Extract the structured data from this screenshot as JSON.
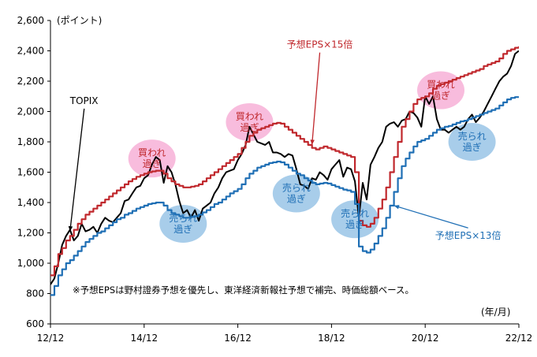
{
  "chart_data": {
    "type": "line",
    "unit_label": "(ポイント)",
    "x_unit_label": "(年/月)",
    "x_ticks": [
      "12/12",
      "14/12",
      "16/12",
      "18/12",
      "20/12",
      "22/12"
    ],
    "y_ticks": [
      600,
      800,
      1000,
      1200,
      1400,
      1600,
      1800,
      2000,
      2200,
      2400,
      2600
    ],
    "ylim": [
      600,
      2600
    ],
    "xlim": [
      0,
      120
    ],
    "note": "※予想EPSは野村證券予想を優先し、東洋経済新報社予想で補完、時価総額ベース。",
    "colors": {
      "topix": "#000000",
      "eps15": "#c0282d",
      "eps13": "#1f6fb5",
      "overbought": "#f7b5d9",
      "oversold": "#9fc8e8"
    },
    "series": [
      {
        "name": "TOPIX",
        "x": [
          0,
          1,
          2,
          3,
          4,
          5,
          6,
          7,
          8,
          9,
          10,
          11,
          12,
          13,
          14,
          15,
          16,
          17,
          18,
          19,
          20,
          21,
          22,
          23,
          24,
          25,
          26,
          27,
          28,
          29,
          30,
          31,
          32,
          33,
          34,
          35,
          36,
          37,
          38,
          39,
          40,
          41,
          42,
          43,
          44,
          45,
          46,
          47,
          48,
          49,
          50,
          51,
          52,
          53,
          54,
          55,
          56,
          57,
          58,
          59,
          60,
          61,
          62,
          63,
          64,
          65,
          66,
          67,
          68,
          69,
          70,
          71,
          72,
          73,
          74,
          75,
          76,
          77,
          78,
          79,
          80,
          81,
          82,
          83,
          84,
          85,
          86,
          87,
          88,
          89,
          90,
          91,
          92,
          93,
          94,
          95,
          96,
          97,
          98,
          99,
          100,
          101,
          102,
          103,
          104,
          105,
          106,
          107,
          108,
          109,
          110,
          111,
          112,
          113,
          114,
          115,
          116,
          117,
          118,
          119,
          120
        ],
        "y": [
          860,
          900,
          1000,
          1120,
          1180,
          1220,
          1150,
          1180,
          1260,
          1210,
          1220,
          1240,
          1200,
          1260,
          1300,
          1280,
          1270,
          1300,
          1330,
          1410,
          1420,
          1460,
          1500,
          1510,
          1560,
          1580,
          1650,
          1700,
          1680,
          1530,
          1640,
          1600,
          1520,
          1410,
          1330,
          1350,
          1300,
          1350,
          1280,
          1360,
          1380,
          1400,
          1460,
          1500,
          1560,
          1600,
          1610,
          1620,
          1680,
          1720,
          1780,
          1900,
          1850,
          1800,
          1790,
          1780,
          1800,
          1730,
          1730,
          1720,
          1700,
          1720,
          1710,
          1620,
          1520,
          1510,
          1490,
          1560,
          1550,
          1600,
          1580,
          1550,
          1620,
          1650,
          1680,
          1570,
          1630,
          1620,
          1540,
          1300,
          1530,
          1420,
          1650,
          1700,
          1760,
          1800,
          1900,
          1920,
          1930,
          1900,
          1940,
          1950,
          2000,
          1990,
          1960,
          1900,
          2100,
          2050,
          2100,
          1950,
          1880,
          1880,
          1860,
          1880,
          1900,
          1880,
          1900,
          1950,
          1980,
          1930,
          1960,
          2000,
          2050,
          2100,
          2150,
          2200,
          2230,
          2250,
          2300,
          2380,
          2400
        ]
      },
      {
        "name": "予想EPS×15倍",
        "x": [
          0,
          1,
          2,
          3,
          4,
          5,
          6,
          7,
          8,
          9,
          10,
          11,
          12,
          13,
          14,
          15,
          16,
          17,
          18,
          19,
          20,
          21,
          22,
          23,
          24,
          25,
          26,
          27,
          28,
          29,
          30,
          31,
          32,
          33,
          34,
          35,
          36,
          37,
          38,
          39,
          40,
          41,
          42,
          43,
          44,
          45,
          46,
          47,
          48,
          49,
          50,
          51,
          52,
          53,
          54,
          55,
          56,
          57,
          58,
          59,
          60,
          61,
          62,
          63,
          64,
          65,
          66,
          67,
          68,
          69,
          70,
          71,
          72,
          73,
          74,
          75,
          76,
          77,
          78,
          79,
          80,
          81,
          82,
          83,
          84,
          85,
          86,
          87,
          88,
          89,
          90,
          91,
          92,
          93,
          94,
          95,
          96,
          97,
          98,
          99,
          100,
          101,
          102,
          103,
          104,
          105,
          106,
          107,
          108,
          109,
          110,
          111,
          112,
          113,
          114,
          115,
          116,
          117,
          118,
          119,
          120
        ],
        "y": [
          920,
          980,
          1060,
          1100,
          1150,
          1180,
          1220,
          1260,
          1290,
          1320,
          1340,
          1360,
          1380,
          1400,
          1420,
          1440,
          1460,
          1480,
          1500,
          1520,
          1540,
          1555,
          1570,
          1580,
          1590,
          1600,
          1605,
          1610,
          1610,
          1590,
          1560,
          1540,
          1520,
          1510,
          1500,
          1500,
          1505,
          1510,
          1520,
          1540,
          1560,
          1580,
          1600,
          1620,
          1640,
          1660,
          1680,
          1700,
          1720,
          1760,
          1800,
          1840,
          1860,
          1880,
          1890,
          1900,
          1910,
          1920,
          1925,
          1920,
          1900,
          1880,
          1860,
          1840,
          1820,
          1800,
          1780,
          1760,
          1750,
          1760,
          1770,
          1760,
          1750,
          1740,
          1730,
          1720,
          1710,
          1700,
          1600,
          1280,
          1250,
          1240,
          1260,
          1300,
          1360,
          1420,
          1500,
          1600,
          1700,
          1800,
          1900,
          1950,
          2000,
          2050,
          2080,
          2090,
          2100,
          2120,
          2150,
          2170,
          2180,
          2190,
          2200,
          2210,
          2220,
          2230,
          2240,
          2250,
          2260,
          2270,
          2280,
          2300,
          2310,
          2320,
          2330,
          2350,
          2380,
          2400,
          2410,
          2420,
          2430
        ]
      },
      {
        "name": "予想EPS×13倍",
        "x": [
          0,
          1,
          2,
          3,
          4,
          5,
          6,
          7,
          8,
          9,
          10,
          11,
          12,
          13,
          14,
          15,
          16,
          17,
          18,
          19,
          20,
          21,
          22,
          23,
          24,
          25,
          26,
          27,
          28,
          29,
          30,
          31,
          32,
          33,
          34,
          35,
          36,
          37,
          38,
          39,
          40,
          41,
          42,
          43,
          44,
          45,
          46,
          47,
          48,
          49,
          50,
          51,
          52,
          53,
          54,
          55,
          56,
          57,
          58,
          59,
          60,
          61,
          62,
          63,
          64,
          65,
          66,
          67,
          68,
          69,
          70,
          71,
          72,
          73,
          74,
          75,
          76,
          77,
          78,
          79,
          80,
          81,
          82,
          83,
          84,
          85,
          86,
          87,
          88,
          89,
          90,
          91,
          92,
          93,
          94,
          95,
          96,
          97,
          98,
          99,
          100,
          101,
          102,
          103,
          104,
          105,
          106,
          107,
          108,
          109,
          110,
          111,
          112,
          113,
          114,
          115,
          116,
          117,
          118,
          119,
          120
        ],
        "y": [
          790,
          850,
          920,
          960,
          1000,
          1020,
          1050,
          1080,
          1110,
          1140,
          1160,
          1180,
          1200,
          1210,
          1230,
          1250,
          1270,
          1290,
          1300,
          1320,
          1330,
          1345,
          1360,
          1370,
          1380,
          1390,
          1395,
          1400,
          1400,
          1380,
          1350,
          1330,
          1320,
          1310,
          1300,
          1300,
          1305,
          1310,
          1320,
          1335,
          1350,
          1370,
          1390,
          1400,
          1420,
          1440,
          1460,
          1475,
          1490,
          1520,
          1560,
          1590,
          1610,
          1630,
          1640,
          1650,
          1660,
          1665,
          1670,
          1665,
          1650,
          1630,
          1610,
          1590,
          1580,
          1560,
          1545,
          1530,
          1520,
          1525,
          1530,
          1525,
          1515,
          1505,
          1495,
          1485,
          1480,
          1470,
          1390,
          1110,
          1080,
          1070,
          1090,
          1130,
          1180,
          1230,
          1300,
          1380,
          1470,
          1560,
          1640,
          1690,
          1730,
          1770,
          1800,
          1810,
          1820,
          1840,
          1860,
          1880,
          1890,
          1900,
          1905,
          1915,
          1925,
          1935,
          1940,
          1950,
          1960,
          1970,
          1980,
          1990,
          2000,
          2010,
          2020,
          2040,
          2060,
          2080,
          2090,
          2095,
          2100
        ]
      }
    ],
    "annotations": [
      {
        "kind": "overbought",
        "label_line1": "買われ",
        "label_line2": "過ぎ",
        "x": 26,
        "y": 1690
      },
      {
        "kind": "overbought",
        "label_line1": "買われ",
        "label_line2": "過ぎ",
        "x": 51,
        "y": 1930
      },
      {
        "kind": "overbought",
        "label_line1": "買われ",
        "label_line2": "過ぎ",
        "x": 100,
        "y": 2140
      },
      {
        "kind": "oversold",
        "label_line1": "売られ",
        "label_line2": "過ぎ",
        "x": 34,
        "y": 1260
      },
      {
        "kind": "oversold",
        "label_line1": "売られ",
        "label_line2": "過ぎ",
        "x": 63,
        "y": 1460
      },
      {
        "kind": "oversold",
        "label_line1": "売られ",
        "label_line2": "過ぎ",
        "x": 78,
        "y": 1290
      },
      {
        "kind": "oversold",
        "label_line1": "売られ",
        "label_line2": "過ぎ",
        "x": 108,
        "y": 1800
      }
    ],
    "series_labels": [
      {
        "series": 0,
        "text": "TOPIX",
        "tx": 5,
        "ty": 2050,
        "ax": 5,
        "ay": 1210
      },
      {
        "series": 1,
        "text": "予想EPS×15倍",
        "tx": 69,
        "ty": 2420,
        "ax": 67,
        "ay": 1780
      },
      {
        "series": 2,
        "text": "予想EPS×13倍",
        "tx": 107,
        "ty": 1160,
        "ax": 88,
        "ay": 1380
      }
    ]
  }
}
